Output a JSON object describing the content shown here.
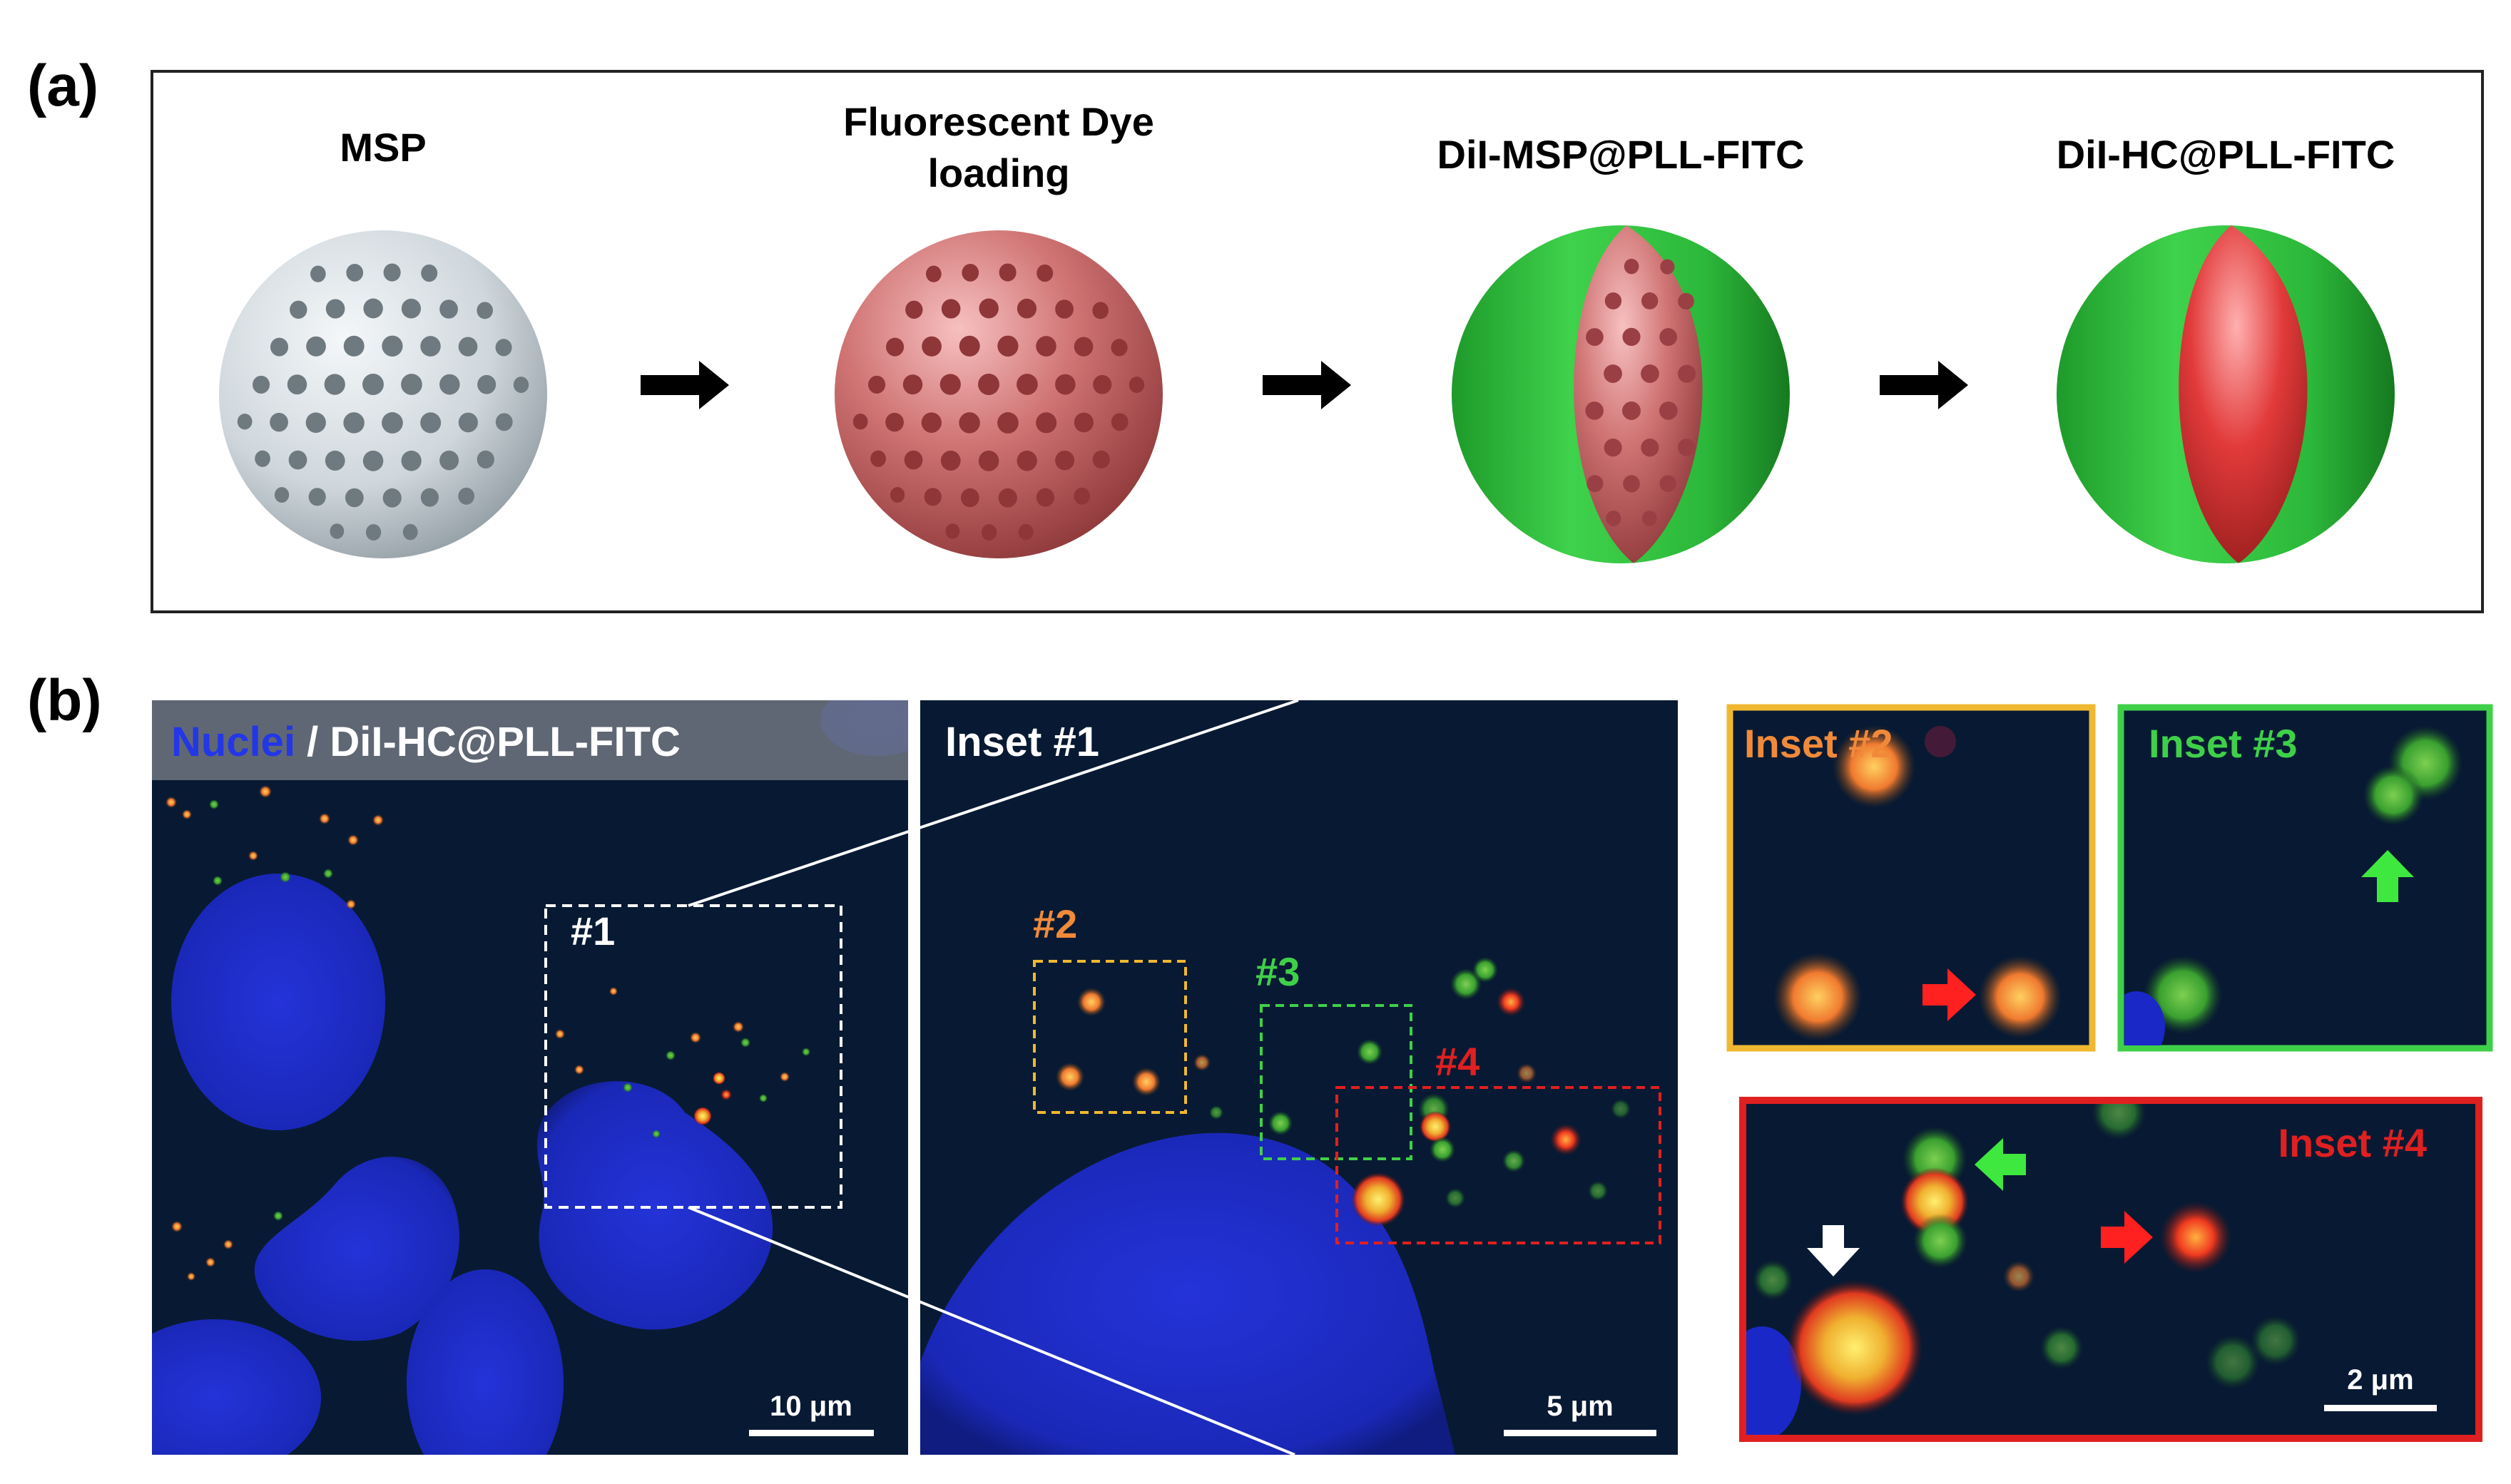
{
  "panel_a": {
    "label": "(a)",
    "steps": [
      {
        "title_lines": [
          "MSP"
        ]
      },
      {
        "title_lines": [
          "Fluorescent Dye",
          "loading"
        ]
      },
      {
        "title_lines": [
          "DiI-MSP@PLL-FITC"
        ]
      },
      {
        "title_lines": [
          "DiI-HC@PLL-FITC"
        ]
      }
    ]
  },
  "panel_b": {
    "label": "(b)",
    "main": {
      "title_nuclei": "Nuclei",
      "title_sep": " / ",
      "title_rest": "DiI-HC@PLL-FITC",
      "box_label": "#1",
      "scale_label": "10 μm"
    },
    "inset1": {
      "title": "Inset #1",
      "box_labels": [
        "#2",
        "#3",
        "#4"
      ],
      "scale_label": "5 μm"
    },
    "inset2": {
      "title": "Inset #2"
    },
    "inset3": {
      "title": "Inset #3"
    },
    "inset4": {
      "title": "Inset #4",
      "scale_label": "2 μm"
    }
  },
  "colors": {
    "micrograph_bg": "#081a33",
    "nucleus": "#1e2fd0",
    "fitc_green": "#2fd43f",
    "dii_red": "#e0303a",
    "inset2_border": "#f0b830",
    "inset3_border": "#3fd04a",
    "inset4_border": "#e02020",
    "orange_label": "#f08a3a"
  }
}
